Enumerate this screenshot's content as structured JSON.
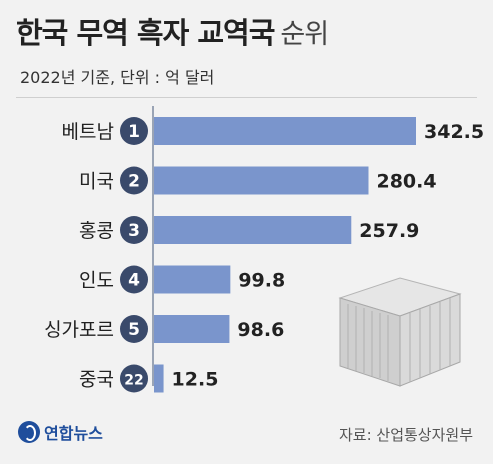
{
  "header": {
    "title_main": "한국 무역 흑자 교역국",
    "title_suffix": "순위",
    "subtitle": "2022년 기준, 단위 : 억 달러"
  },
  "footer": {
    "logo_text": "연합뉴스",
    "source": "자료: 산업통상자원부"
  },
  "colors": {
    "bar": "#7a95cc",
    "rank_badge": "#3a4a6b",
    "axis": "#9aa4b5"
  },
  "chart_data": {
    "type": "bar",
    "orientation": "horizontal",
    "categories": [
      "베트남",
      "미국",
      "홍콩",
      "인도",
      "싱가포르",
      "중국"
    ],
    "ranks": [
      "1",
      "2",
      "3",
      "4",
      "5",
      "22"
    ],
    "values": [
      342.5,
      280.4,
      257.9,
      99.8,
      98.6,
      12.5
    ],
    "value_labels": [
      "342.5",
      "280.4",
      "257.9",
      "99.8",
      "98.6",
      "12.5"
    ],
    "xlim": [
      0,
      342.5
    ],
    "grid": false,
    "title": "한국 무역 흑자 교역국 순위",
    "subtitle": "2022년 기준, 단위 : 억 달러"
  }
}
